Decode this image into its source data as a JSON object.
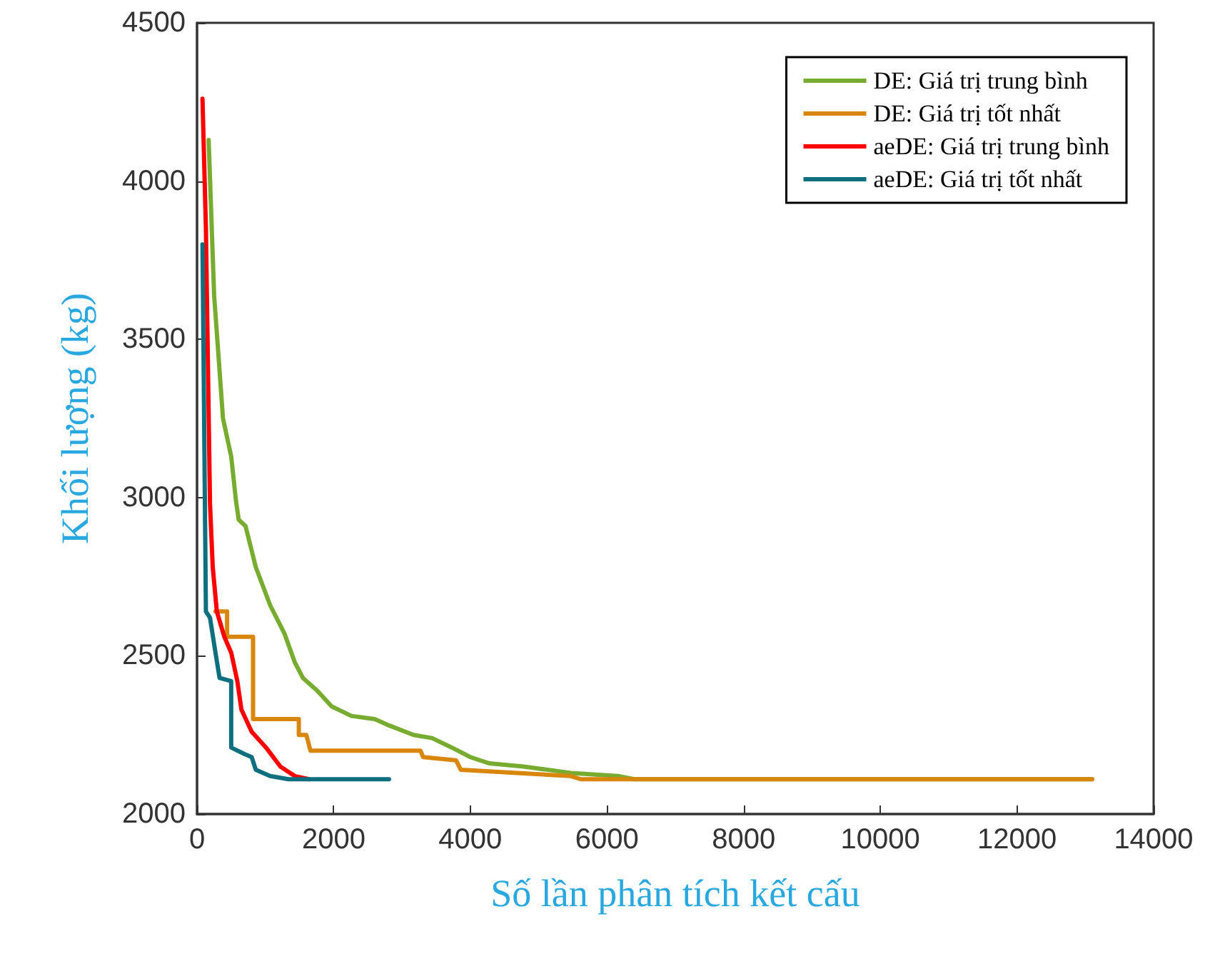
{
  "chart_data": {
    "type": "line",
    "xlabel": "Số lần phân tích kết cấu",
    "ylabel": "Khối lượng (kg)",
    "xlim": [
      0,
      14000
    ],
    "xticks": [
      0,
      2000,
      4000,
      6000,
      8000,
      10000,
      12000,
      14000
    ],
    "ylim": [
      2000,
      4500
    ],
    "yticks": [
      2000,
      2500,
      3000,
      3500,
      4000,
      4500
    ],
    "grid": false,
    "legend": "top right",
    "marker": "none",
    "line_style": "solid",
    "series": [
      {
        "name": "DE: Giá trị trung bình",
        "color": "#77ac30",
        "x": [
          170,
          250,
          380,
          500,
          570,
          610,
          710,
          860,
          1070,
          1280,
          1430,
          1550,
          1760,
          1970,
          2260,
          2600,
          2810,
          3170,
          3440,
          3730,
          4000,
          4280,
          4780,
          5470,
          6160,
          6400,
          13100
        ],
        "values": [
          4130,
          3640,
          3250,
          3130,
          2990,
          2930,
          2910,
          2780,
          2660,
          2570,
          2480,
          2430,
          2390,
          2340,
          2310,
          2300,
          2280,
          2250,
          2240,
          2210,
          2180,
          2160,
          2150,
          2130,
          2120,
          2110,
          2110
        ]
      },
      {
        "name": "DE: Giá trị tốt nhất",
        "color": "#d9860d",
        "x": [
          270,
          440,
          440,
          820,
          820,
          1490,
          1490,
          1600,
          1660,
          3270,
          3310,
          3790,
          3860,
          5470,
          5620,
          13100
        ],
        "values": [
          2640,
          2640,
          2560,
          2560,
          2300,
          2300,
          2250,
          2250,
          2200,
          2200,
          2180,
          2170,
          2140,
          2120,
          2110,
          2110
        ]
      },
      {
        "name": "aeDE: Giá trị trung bình",
        "color": "#ff0000",
        "x": [
          80,
          130,
          190,
          230,
          290,
          400,
          500,
          590,
          650,
          800,
          1010,
          1220,
          1430,
          1640
        ],
        "values": [
          4260,
          3850,
          2980,
          2780,
          2640,
          2560,
          2510,
          2420,
          2330,
          2260,
          2210,
          2150,
          2120,
          2110
        ]
      },
      {
        "name": "aeDE: Giá trị tốt nhất",
        "color": "#0f6f7f",
        "x": [
          80,
          130,
          190,
          270,
          330,
          500,
          500,
          690,
          800,
          860,
          1070,
          1340,
          2810
        ],
        "values": [
          3800,
          2640,
          2620,
          2510,
          2430,
          2420,
          2210,
          2190,
          2180,
          2140,
          2120,
          2110,
          2110
        ]
      }
    ]
  }
}
